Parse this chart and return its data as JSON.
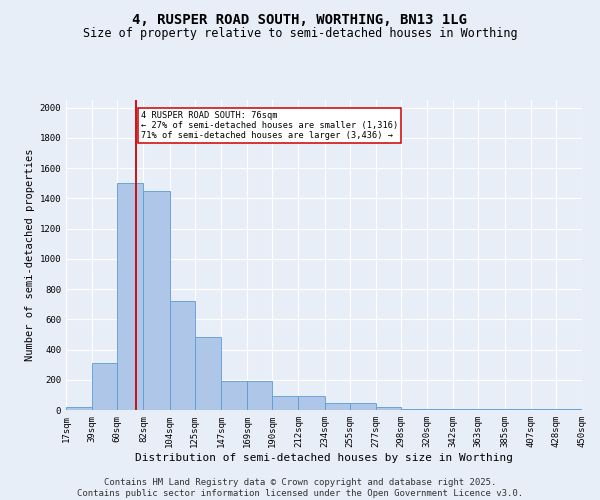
{
  "title": "4, RUSPER ROAD SOUTH, WORTHING, BN13 1LG",
  "subtitle": "Size of property relative to semi-detached houses in Worthing",
  "xlabel": "Distribution of semi-detached houses by size in Worthing",
  "ylabel": "Number of semi-detached properties",
  "footer_line1": "Contains HM Land Registry data © Crown copyright and database right 2025.",
  "footer_line2": "Contains public sector information licensed under the Open Government Licence v3.0.",
  "bins": [
    "17sqm",
    "39sqm",
    "60sqm",
    "82sqm",
    "104sqm",
    "125sqm",
    "147sqm",
    "169sqm",
    "190sqm",
    "212sqm",
    "234sqm",
    "255sqm",
    "277sqm",
    "298sqm",
    "320sqm",
    "342sqm",
    "363sqm",
    "385sqm",
    "407sqm",
    "428sqm",
    "450sqm"
  ],
  "bin_edges": [
    17,
    39,
    60,
    82,
    104,
    125,
    147,
    169,
    190,
    212,
    234,
    255,
    277,
    298,
    320,
    342,
    363,
    385,
    407,
    428,
    450
  ],
  "values": [
    20,
    310,
    1500,
    1450,
    720,
    485,
    195,
    195,
    90,
    90,
    45,
    45,
    20,
    5,
    5,
    5,
    5,
    5,
    5,
    5
  ],
  "bar_color": "#aec6e8",
  "bar_edge_color": "#5b9bd5",
  "property_value": 76,
  "vline_color": "#cc0000",
  "annotation_text": "4 RUSPER ROAD SOUTH: 76sqm\n← 27% of semi-detached houses are smaller (1,316)\n71% of semi-detached houses are larger (3,436) →",
  "annotation_box_color": "#ffffff",
  "annotation_box_edge": "#cc0000",
  "ylim": [
    0,
    2050
  ],
  "background_color": "#e8eef8",
  "grid_color": "#ffffff",
  "title_fontsize": 10,
  "subtitle_fontsize": 8.5,
  "axis_label_fontsize": 7.5,
  "tick_fontsize": 6.5,
  "footer_fontsize": 6.5,
  "yticks": [
    0,
    200,
    400,
    600,
    800,
    1000,
    1200,
    1400,
    1600,
    1800,
    2000
  ]
}
